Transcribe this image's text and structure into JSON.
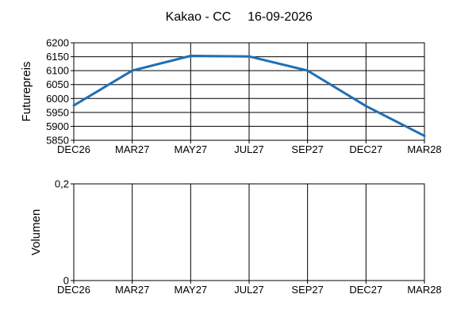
{
  "title": {
    "commodity": "Kakao - CC",
    "date": "16-09-2026"
  },
  "chart_data": [
    {
      "type": "line",
      "ylabel": "Futurepreis",
      "categories": [
        "DEC26",
        "MAR27",
        "MAY27",
        "JUL27",
        "SEP27",
        "DEC27",
        "MAR28"
      ],
      "series": [
        {
          "values": [
            5975,
            6100,
            6153,
            6151,
            6100,
            5973,
            5866
          ]
        }
      ],
      "ylim": [
        5850,
        6200
      ],
      "yticks": [
        "5850",
        "5900",
        "5950",
        "6000",
        "6050",
        "6100",
        "6150",
        "6200"
      ],
      "grid": true,
      "line_color": "#1f6fb4"
    },
    {
      "type": "bar",
      "ylabel": "Volumen",
      "categories": [
        "DEC26",
        "MAR27",
        "MAY27",
        "JUL27",
        "SEP27",
        "DEC27",
        "MAR28"
      ],
      "series": [
        {
          "values": [
            0,
            0,
            0,
            0,
            0,
            0,
            0
          ]
        }
      ],
      "ylim": [
        0,
        0.2
      ],
      "yticks": [
        "0",
        "0,2"
      ],
      "grid": true
    }
  ]
}
